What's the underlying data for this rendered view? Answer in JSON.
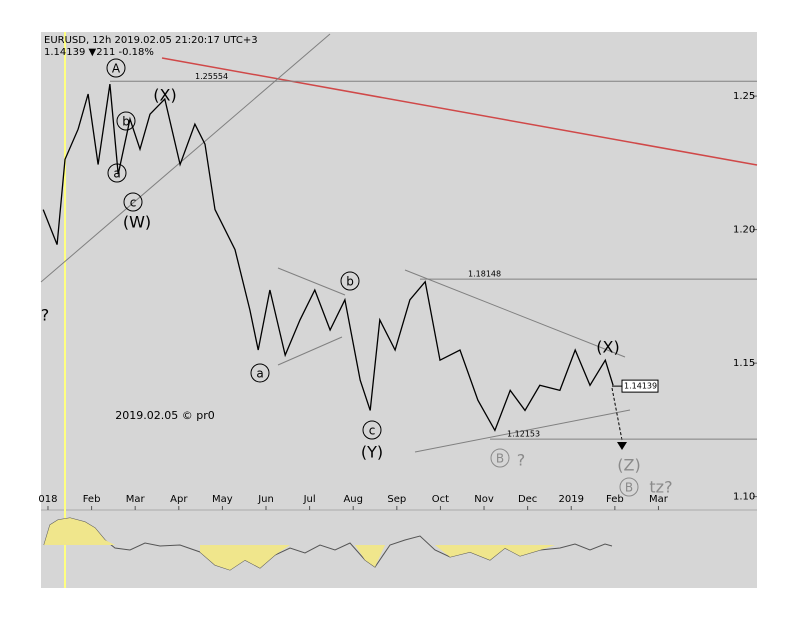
{
  "chart_data": {
    "type": "line",
    "title": "EURUSD, 12h 2019.02.05 21:20:17 UTC+3",
    "subtitle": "1.14139 ▼211 -0.18%",
    "x": [
      -0.11,
      0.21,
      0.39,
      0.69,
      0.92,
      1.15,
      1.42,
      1.61,
      1.88,
      2.11,
      2.34,
      2.68,
      3.03,
      3.37,
      3.6,
      3.83,
      4.29,
      4.63,
      4.82,
      5.09,
      5.44,
      5.78,
      6.12,
      6.47,
      6.81,
      7.16,
      7.39,
      7.61,
      7.96,
      8.3,
      8.65,
      8.99,
      9.45,
      9.86,
      10.25,
      10.6,
      10.94,
      11.28,
      11.74,
      12.09,
      12.43,
      12.78,
      12.96
    ],
    "values": [
      1.2075,
      1.1944,
      1.2263,
      1.2376,
      1.2508,
      1.2244,
      1.2545,
      1.2207,
      1.2414,
      1.2301,
      1.2432,
      1.2489,
      1.2244,
      1.2395,
      1.232,
      1.2075,
      1.1925,
      1.1699,
      1.1549,
      1.1774,
      1.153,
      1.1662,
      1.1774,
      1.1624,
      1.1737,
      1.1436,
      1.1323,
      1.1662,
      1.1549,
      1.1737,
      1.1805,
      1.1511,
      1.1549,
      1.1361,
      1.1248,
      1.1398,
      1.1323,
      1.1417,
      1.1398,
      1.1549,
      1.1417,
      1.1511,
      1.1417
    ],
    "color": "#000000",
    "xlim": [
      -0.16,
      16.26
    ],
    "ylim": [
      1.095,
      1.274
    ],
    "xticks": [
      {
        "value": 0,
        "label": "018"
      },
      {
        "value": 1,
        "label": "Feb"
      },
      {
        "value": 2,
        "label": "Mar"
      },
      {
        "value": 3,
        "label": "Apr"
      },
      {
        "value": 4,
        "label": "May"
      },
      {
        "value": 5,
        "label": "Jun"
      },
      {
        "value": 6,
        "label": "Jul"
      },
      {
        "value": 7,
        "label": "Aug"
      },
      {
        "value": 8,
        "label": "Sep"
      },
      {
        "value": 9,
        "label": "Oct"
      },
      {
        "value": 10,
        "label": "Nov"
      },
      {
        "value": 11,
        "label": "Dec"
      },
      {
        "value": 12,
        "label": "2019"
      },
      {
        "value": 13,
        "label": "Feb"
      },
      {
        "value": 14,
        "label": "Mar"
      }
    ],
    "yticks": [
      {
        "value": 1.1,
        "label": "1.10"
      },
      1.15,
      {
        "value": 1.2,
        "label": "1.20"
      },
      1.25
    ],
    "levels": [
      1.25554,
      1.18148,
      1.12153
    ],
    "current_price": 1.14139,
    "annotations": [
      "A",
      "b",
      "a",
      "c",
      "(W)",
      "(X)",
      "b",
      "a",
      "c",
      "(Y)",
      "(X)",
      "B",
      "?",
      "(Z)",
      "B",
      "tz?",
      "?",
      "2019.02.05 © pr0"
    ]
  }
}
